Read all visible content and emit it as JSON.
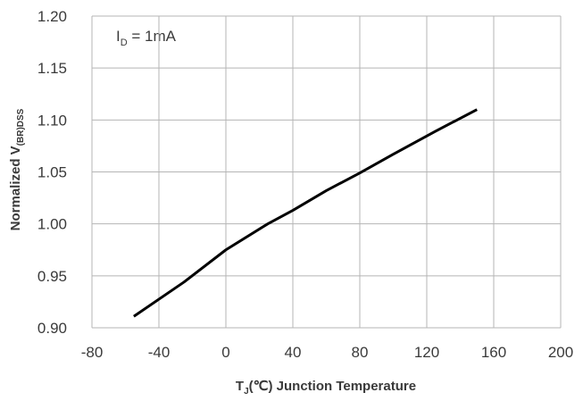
{
  "chart_data": {
    "type": "line",
    "xlabel": "T",
    "xlabel_sub": "J",
    "xlabel_rest": "(℃) Junction Temperature",
    "ylabel": "Normalized V",
    "ylabel_sub": "(BR)DSS",
    "annotation": "I",
    "annotation_sub": "D",
    "annotation_rest": " = 1mA",
    "x": [
      -55,
      -25,
      0,
      25,
      40,
      60,
      80,
      100,
      125,
      150
    ],
    "series": [
      {
        "color": "#000000",
        "values": [
          0.911,
          0.944,
          0.975,
          1.0,
          1.013,
          1.032,
          1.049,
          1.067,
          1.089,
          1.11
        ]
      }
    ],
    "xlim": [
      -80,
      200
    ],
    "xticks": [
      -80,
      -40,
      0,
      40,
      80,
      120,
      160,
      200
    ],
    "ylim": [
      0.9,
      1.2
    ],
    "yticks": [
      {
        "value": 0.9,
        "label": "0.90"
      },
      0.95,
      {
        "value": 1.0,
        "label": "1.00"
      },
      1.05,
      {
        "value": 1.1,
        "label": "1.10"
      },
      1.15,
      {
        "value": 1.2,
        "label": "1.20"
      }
    ],
    "grid": true
  }
}
